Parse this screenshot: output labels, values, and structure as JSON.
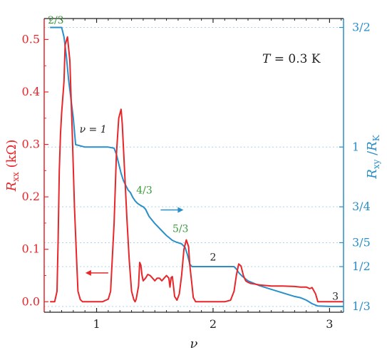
{
  "chart_data": {
    "type": "line",
    "title": "",
    "x_axis": {
      "label": "ν",
      "range": [
        0.55,
        3.12
      ],
      "ticks": [
        1,
        2,
        3
      ],
      "tick_labels": [
        "1",
        "2",
        "3"
      ]
    },
    "y_left": {
      "label": "R_xx (kΩ)",
      "label_main": "R",
      "label_sub": "xx",
      "label_unit": " (kΩ)",
      "range": [
        -0.02,
        0.54
      ],
      "ticks": [
        0.0,
        0.1,
        0.2,
        0.3,
        0.4,
        0.5
      ],
      "tick_labels": [
        "0.0",
        "0.1",
        "0.2",
        "0.3",
        "0.4",
        "0.5"
      ],
      "color": "#e8262a"
    },
    "y_right": {
      "label": "R_xy / R_K",
      "label_main": "R",
      "label_sub": "xy",
      "label_div": " /",
      "label_main2": "R",
      "label_sub2": "K",
      "range": [
        0.3092,
        1.5373
      ],
      "ticks": [
        0.3333,
        0.5,
        0.6,
        0.75,
        1.0,
        1.5
      ],
      "tick_labels": [
        "1/3",
        "1/2",
        "3/5",
        "3/4",
        "1",
        "3/2"
      ],
      "color": "#2a8fc9"
    },
    "grid": "horizontal dotted at right-axis ticks",
    "series": [
      {
        "axis": "left",
        "color": "#e8262a",
        "x": [
          0.6,
          0.64,
          0.66,
          0.67,
          0.68,
          0.69,
          0.7,
          0.72,
          0.73,
          0.75,
          0.77,
          0.79,
          0.81,
          0.83,
          0.84,
          0.86,
          0.88,
          0.9,
          0.95,
          1.0,
          1.05,
          1.1,
          1.12,
          1.15,
          1.17,
          1.19,
          1.21,
          1.22,
          1.24,
          1.26,
          1.28,
          1.3,
          1.32,
          1.33,
          1.34,
          1.36,
          1.37,
          1.38,
          1.39,
          1.4,
          1.42,
          1.44,
          1.46,
          1.48,
          1.5,
          1.52,
          1.54,
          1.56,
          1.58,
          1.6,
          1.62,
          1.63,
          1.64,
          1.65,
          1.66,
          1.67,
          1.69,
          1.71,
          1.73,
          1.75,
          1.77,
          1.79,
          1.8,
          1.82,
          1.83,
          1.85,
          1.9,
          2.0,
          2.1,
          2.15,
          2.18,
          2.2,
          2.22,
          2.24,
          2.26,
          2.28,
          2.3,
          2.32,
          2.35,
          2.4,
          2.5,
          2.6,
          2.7,
          2.75,
          2.8,
          2.83,
          2.85,
          2.88,
          2.9,
          2.95,
          3.0,
          3.05,
          3.12
        ],
        "y": [
          0.0,
          0.0,
          0.02,
          0.12,
          0.25,
          0.32,
          0.36,
          0.42,
          0.49,
          0.505,
          0.46,
          0.33,
          0.18,
          0.07,
          0.02,
          0.004,
          0.0,
          0.0,
          0.0,
          0.0,
          0.0,
          0.005,
          0.02,
          0.15,
          0.28,
          0.35,
          0.367,
          0.34,
          0.25,
          0.16,
          0.08,
          0.02,
          0.004,
          0.0,
          0.005,
          0.03,
          0.075,
          0.07,
          0.05,
          0.04,
          0.045,
          0.052,
          0.05,
          0.045,
          0.04,
          0.045,
          0.045,
          0.04,
          0.045,
          0.05,
          0.045,
          0.028,
          0.046,
          0.048,
          0.03,
          0.01,
          0.003,
          0.015,
          0.05,
          0.1,
          0.118,
          0.105,
          0.07,
          0.03,
          0.008,
          0.0,
          0.0,
          0.0,
          0.0,
          0.003,
          0.02,
          0.05,
          0.072,
          0.068,
          0.05,
          0.04,
          0.037,
          0.035,
          0.034,
          0.032,
          0.03,
          0.03,
          0.029,
          0.028,
          0.028,
          0.025,
          0.027,
          0.015,
          0.0,
          0.0,
          0.0,
          0.0,
          0.0
        ]
      },
      {
        "axis": "right",
        "color": "#2a8fc9",
        "x": [
          0.6,
          0.7,
          0.72,
          0.74,
          0.76,
          0.78,
          0.8,
          0.82,
          0.9,
          1.0,
          1.1,
          1.15,
          1.17,
          1.19,
          1.21,
          1.23,
          1.25,
          1.27,
          1.29,
          1.31,
          1.33,
          1.35,
          1.38,
          1.4,
          1.42,
          1.45,
          1.5,
          1.55,
          1.6,
          1.65,
          1.68,
          1.7,
          1.73,
          1.76,
          1.78,
          1.8,
          1.82,
          2.0,
          2.1,
          2.18,
          2.2,
          2.22,
          2.25,
          2.3,
          2.4,
          2.5,
          2.6,
          2.7,
          2.75,
          2.8,
          2.85,
          2.9,
          3.0,
          3.12
        ],
        "y": [
          1.5,
          1.5,
          1.46,
          1.38,
          1.28,
          1.2,
          1.12,
          1.01,
          1.0,
          1.0,
          1.0,
          0.995,
          0.97,
          0.93,
          0.89,
          0.86,
          0.84,
          0.82,
          0.81,
          0.79,
          0.775,
          0.765,
          0.755,
          0.75,
          0.74,
          0.71,
          0.68,
          0.655,
          0.63,
          0.61,
          0.603,
          0.6,
          0.595,
          0.58,
          0.55,
          0.51,
          0.5,
          0.5,
          0.5,
          0.5,
          0.49,
          0.475,
          0.46,
          0.44,
          0.42,
          0.405,
          0.39,
          0.375,
          0.37,
          0.36,
          0.345,
          0.335,
          0.3333,
          0.3333
        ]
      }
    ],
    "annotations": [
      {
        "text": "2/3",
        "x": 0.65,
        "y": 1.517,
        "axis": "right",
        "color": "#3a9a3a"
      },
      {
        "text": "ν = 1",
        "x": 0.97,
        "y": 1.06,
        "axis": "right",
        "color": "#222222"
      },
      {
        "text": "4/3",
        "x": 1.41,
        "y": 0.805,
        "axis": "right",
        "color": "#3a9a3a"
      },
      {
        "text": "5/3",
        "x": 1.72,
        "y": 0.645,
        "axis": "right",
        "color": "#3a9a3a"
      },
      {
        "text": "2",
        "x": 2.0,
        "y": 0.525,
        "axis": "right",
        "color": "#222222"
      },
      {
        "text": "3",
        "x": 3.05,
        "y": 0.362,
        "axis": "right",
        "color": "#222222"
      }
    ],
    "temperature_label": "T = 0.3 K",
    "temperature_symbol": "T",
    "temperature_value": " = 0.3 K",
    "arrows": [
      {
        "series_axis": "left",
        "direction": "left",
        "x": 1.1,
        "y": 0.055,
        "color": "#e8262a"
      },
      {
        "series_axis": "right",
        "direction": "right",
        "x": 1.55,
        "y": 0.737,
        "color": "#2a8fc9"
      }
    ]
  }
}
